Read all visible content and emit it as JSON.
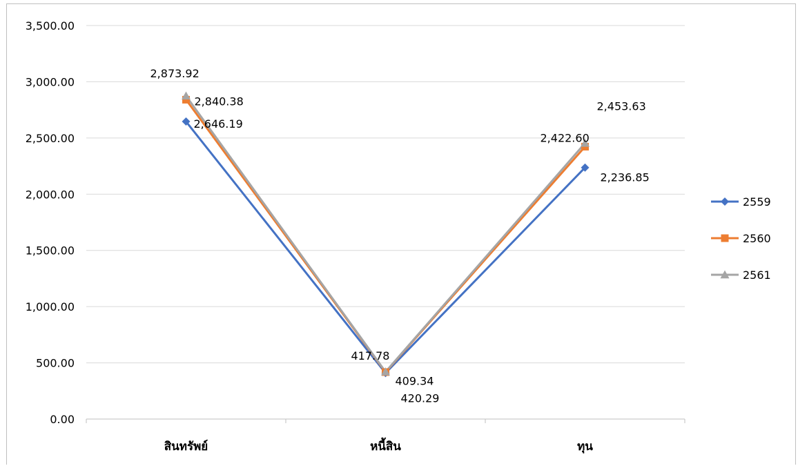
{
  "chart_data": {
    "type": "line",
    "title": "",
    "xlabel": "",
    "ylabel": "",
    "categories": [
      "สินทรัพย์",
      "หนี้สิน",
      "ทุน"
    ],
    "ylim": [
      0,
      3500
    ],
    "yticks": [
      0,
      500,
      1000,
      1500,
      2000,
      2500,
      3000,
      3500
    ],
    "ytick_labels": [
      "0.00",
      "500.00",
      "1,000.00",
      "1,500.00",
      "2,000.00",
      "2,500.00",
      "3,000.00",
      "3,500.00"
    ],
    "grid": true,
    "legend_position": "right",
    "series": [
      {
        "name": "2559",
        "color": "#4472C4",
        "marker": "diamond",
        "values": [
          2646.19,
          409.34,
          2236.85
        ],
        "labels": [
          "2,646.19",
          "409.34",
          "2,236.85"
        ]
      },
      {
        "name": "2560",
        "color": "#ED7D31",
        "marker": "square",
        "values": [
          2840.38,
          417.78,
          2422.6
        ],
        "labels": [
          "2,840.38",
          "417.78",
          "2,422.60"
        ]
      },
      {
        "name": "2561",
        "color": "#A5A5A5",
        "marker": "triangle",
        "values": [
          2873.92,
          420.29,
          2453.63
        ],
        "labels": [
          "2,873.92",
          "420.29",
          "2,453.63"
        ]
      }
    ]
  }
}
